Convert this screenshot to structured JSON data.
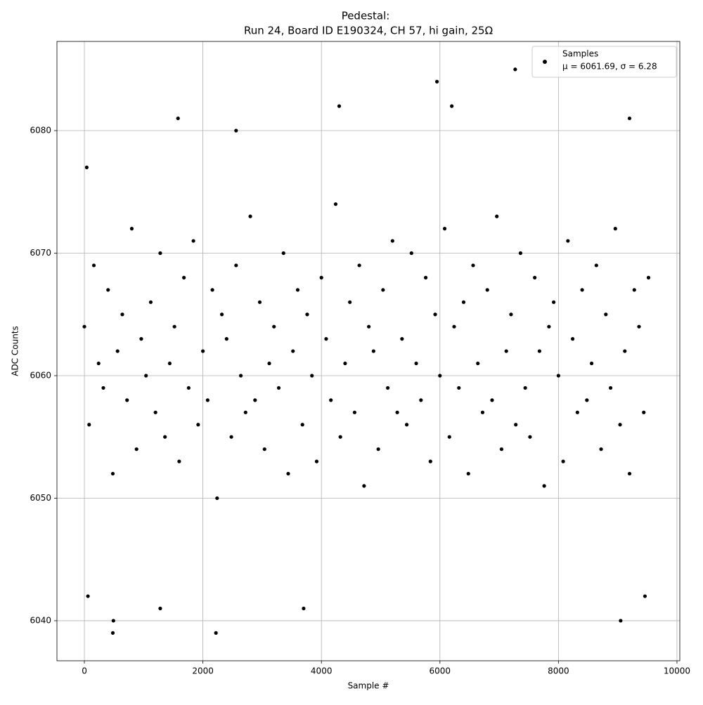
{
  "chart_data": {
    "type": "scatter",
    "title": "Pedestal:",
    "subtitle": "Run 24, Board ID E190324, CH 57, hi gain, 25Ω",
    "x_label": "Sample #",
    "y_label": "ADC Counts",
    "xlim": [
      -463,
      10048
    ],
    "ylim": [
      6036.73,
      6087.28
    ],
    "xticks": [
      0,
      2000,
      4000,
      6000,
      8000,
      10000
    ],
    "yticks": [
      6040,
      6050,
      6060,
      6070,
      6080
    ],
    "grid": true,
    "legend": "upper right",
    "series": [
      {
        "name": "Samples",
        "label": "μ = 6061.69, σ = 6.28",
        "color": "#000000",
        "x": [
          0,
          80,
          160,
          240,
          320,
          400,
          480,
          560,
          640,
          720,
          800,
          880,
          960,
          1040,
          1120,
          1200,
          1280,
          1360,
          1440,
          1520,
          1600,
          1680,
          1760,
          1840,
          1920,
          2000,
          2080,
          2160,
          2240,
          2320,
          2400,
          2480,
          2560,
          2640,
          2720,
          2800,
          2880,
          2960,
          3040,
          3120,
          3200,
          3280,
          3360,
          3440,
          3520,
          3600,
          3680,
          3760,
          3840,
          3920,
          4000,
          4080,
          4160,
          4240,
          4320,
          4400,
          4480,
          4560,
          4640,
          4720,
          4800,
          4880,
          4960,
          5040,
          5120,
          5200,
          5280,
          5360,
          5440,
          5520,
          5600,
          5680,
          5760,
          5840,
          5920,
          6000,
          6080,
          6160,
          6240,
          6320,
          6400,
          6480,
          6560,
          6640,
          6720,
          6800,
          6880,
          6960,
          7040,
          7120,
          7200,
          7280,
          7360,
          7440,
          7520,
          7600,
          7680,
          7760,
          7840,
          7920,
          8000,
          8080,
          8160,
          8240,
          8320,
          8400,
          8480,
          8560,
          8640,
          8720,
          8800,
          8880,
          8960,
          9040,
          9120,
          9200,
          9280,
          9360,
          9440,
          9520,
          40,
          60,
          480,
          490,
          1280,
          1580,
          2220,
          3700,
          4300,
          5950,
          6200,
          7270,
          9050,
          9460,
          2560,
          9200
        ],
        "values": [
          6064,
          6056,
          6069,
          6061,
          6059,
          6067,
          6052,
          6062,
          6065,
          6058,
          6072,
          6054,
          6063,
          6060,
          6066,
          6057,
          6070,
          6055,
          6061,
          6064,
          6053,
          6068,
          6059,
          6071,
          6056,
          6062,
          6058,
          6067,
          6050,
          6065,
          6063,
          6055,
          6069,
          6060,
          6057,
          6073,
          6058,
          6066,
          6054,
          6061,
          6064,
          6059,
          6070,
          6052,
          6062,
          6067,
          6056,
          6065,
          6060,
          6053,
          6068,
          6063,
          6058,
          6074,
          6055,
          6061,
          6066,
          6057,
          6069,
          6051,
          6064,
          6062,
          6054,
          6067,
          6059,
          6071,
          6057,
          6063,
          6056,
          6070,
          6061,
          6058,
          6068,
          6053,
          6065,
          6060,
          6072,
          6055,
          6064,
          6059,
          6066,
          6052,
          6069,
          6061,
          6057,
          6067,
          6058,
          6073,
          6054,
          6062,
          6065,
          6056,
          6070,
          6059,
          6055,
          6068,
          6062,
          6051,
          6064,
          6066,
          6060,
          6053,
          6071,
          6063,
          6057,
          6067,
          6058,
          6061,
          6069,
          6054,
          6065,
          6059,
          6072,
          6056,
          6062,
          6052,
          6067,
          6064,
          6057,
          6068,
          6077,
          6042,
          6039,
          6040,
          6041,
          6081,
          6039,
          6041,
          6082,
          6084,
          6082,
          6085,
          6040,
          6042,
          6080,
          6081
        ]
      }
    ]
  }
}
